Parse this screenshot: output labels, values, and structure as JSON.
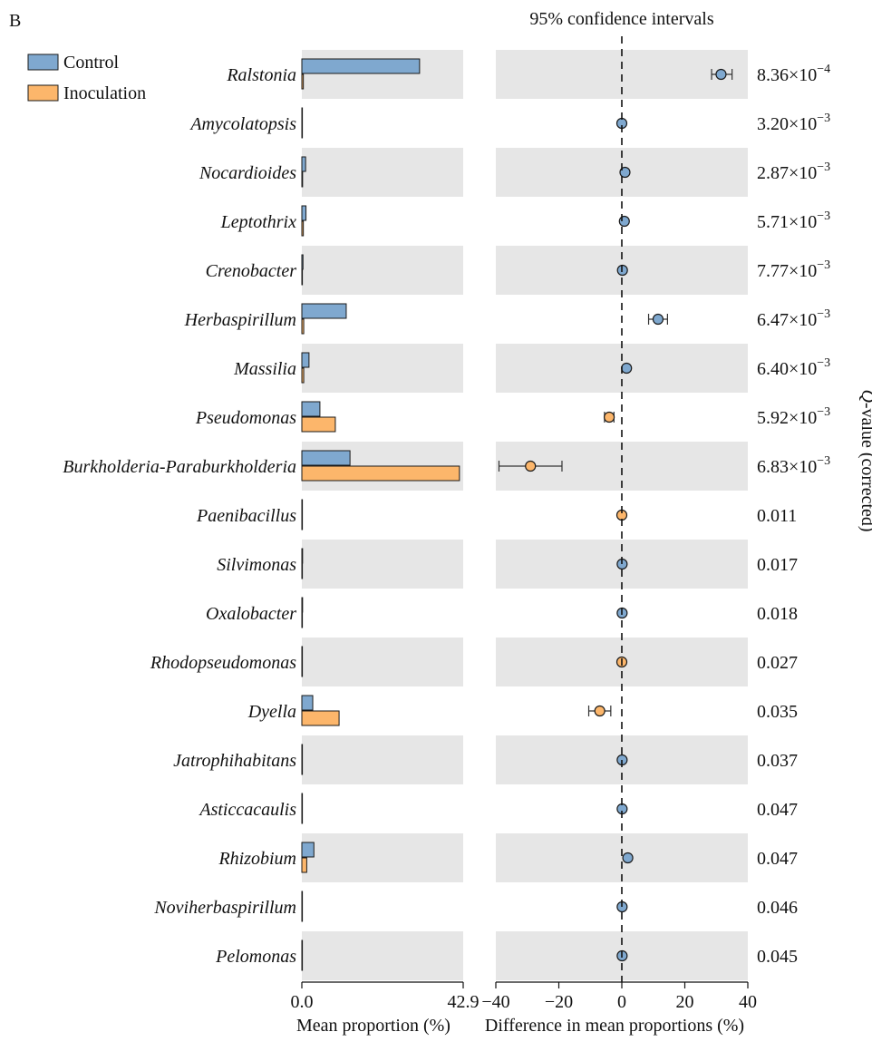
{
  "panel_label": "B",
  "chart_data": {
    "type": "bar",
    "legend": {
      "placement": "top-left",
      "items": [
        {
          "name": "Control",
          "color": "#7fa8cf"
        },
        {
          "name": "Inoculation",
          "color": "#fcb66b"
        }
      ]
    },
    "categories": [
      "Ralstonia",
      "Amycolatopsis",
      "Nocardioides",
      "Leptothrix",
      "Crenobacter",
      "Herbaspirillum",
      "Massilia",
      "Pseudomonas",
      "Burkholderia-Paraburkholderia",
      "Paenibacillus",
      "Silvimonas",
      "Oxalobacter",
      "Rhodopseudomonas",
      "Dyella",
      "Jatrophihabitans",
      "Asticcacaulis",
      "Rhizobium",
      "Noviherbaspirillum",
      "Pelomonas"
    ],
    "left_panel": {
      "xlabel": "Mean proportion (%)",
      "xlim": [
        0,
        42.9
      ],
      "xticks": [
        "0.0",
        "42.9"
      ],
      "series": [
        {
          "name": "Control",
          "values": [
            31.3,
            0.1,
            1.0,
            1.1,
            0.3,
            11.8,
            1.9,
            4.8,
            12.8,
            0.1,
            0.2,
            0.2,
            0.1,
            2.9,
            0.1,
            0.1,
            3.2,
            0.1,
            0.1
          ]
        },
        {
          "name": "Inoculation",
          "values": [
            0.4,
            0.05,
            0.2,
            0.4,
            0.1,
            0.5,
            0.5,
            8.9,
            41.9,
            0.05,
            0.05,
            0.05,
            0.05,
            9.9,
            0.05,
            0.05,
            1.3,
            0.05,
            0.05
          ]
        }
      ]
    },
    "right_panel": {
      "title": "95% confidence intervals",
      "xlabel": "Difference in mean proportions (%)",
      "xlim": [
        -40,
        40
      ],
      "xticks": [
        "−40",
        "−20",
        "0",
        "20",
        "40"
      ],
      "tick_values": [
        -40,
        -20,
        0,
        20,
        40
      ],
      "reference_line": 0,
      "points": [
        {
          "diff": 31.5,
          "low": 28.5,
          "high": 35.0,
          "group": "Control"
        },
        {
          "diff": 0.0,
          "low": null,
          "high": null,
          "group": "Control"
        },
        {
          "diff": 1.0,
          "low": null,
          "high": null,
          "group": "Control"
        },
        {
          "diff": 0.8,
          "low": null,
          "high": null,
          "group": "Control"
        },
        {
          "diff": 0.2,
          "low": null,
          "high": null,
          "group": "Control"
        },
        {
          "diff": 11.5,
          "low": 8.5,
          "high": 14.5,
          "group": "Control"
        },
        {
          "diff": 1.5,
          "low": null,
          "high": null,
          "group": "Control"
        },
        {
          "diff": -4.0,
          "low": -5.5,
          "high": -2.5,
          "group": "Inoculation"
        },
        {
          "diff": -29.0,
          "low": -39.0,
          "high": -19.0,
          "group": "Inoculation"
        },
        {
          "diff": 0.0,
          "low": null,
          "high": null,
          "group": "Inoculation"
        },
        {
          "diff": 0.1,
          "low": null,
          "high": null,
          "group": "Control"
        },
        {
          "diff": 0.1,
          "low": null,
          "high": null,
          "group": "Control"
        },
        {
          "diff": 0.0,
          "low": null,
          "high": null,
          "group": "Inoculation"
        },
        {
          "diff": -7.0,
          "low": -10.5,
          "high": -3.5,
          "group": "Inoculation"
        },
        {
          "diff": 0.1,
          "low": null,
          "high": null,
          "group": "Control"
        },
        {
          "diff": 0.1,
          "low": null,
          "high": null,
          "group": "Control"
        },
        {
          "diff": 1.9,
          "low": null,
          "high": null,
          "group": "Control"
        },
        {
          "diff": 0.1,
          "low": null,
          "high": null,
          "group": "Control"
        },
        {
          "diff": 0.1,
          "low": null,
          "high": null,
          "group": "Control"
        }
      ]
    },
    "q_values": [
      {
        "base": "8.36×10",
        "exp": "−4"
      },
      {
        "base": "3.20×10",
        "exp": "−3"
      },
      {
        "base": "2.87×10",
        "exp": "−3"
      },
      {
        "base": "5.71×10",
        "exp": "−3"
      },
      {
        "base": "7.77×10",
        "exp": "−3"
      },
      {
        "base": "6.47×10",
        "exp": "−3"
      },
      {
        "base": "6.40×10",
        "exp": "−3"
      },
      {
        "base": "5.92×10",
        "exp": "−3"
      },
      {
        "base": "6.83×10",
        "exp": "−3"
      },
      {
        "base": "0.011",
        "exp": ""
      },
      {
        "base": "0.017",
        "exp": ""
      },
      {
        "base": "0.018",
        "exp": ""
      },
      {
        "base": "0.027",
        "exp": ""
      },
      {
        "base": "0.035",
        "exp": ""
      },
      {
        "base": "0.037",
        "exp": ""
      },
      {
        "base": "0.047",
        "exp": ""
      },
      {
        "base": "0.047",
        "exp": ""
      },
      {
        "base": "0.046",
        "exp": ""
      },
      {
        "base": "0.045",
        "exp": ""
      }
    ],
    "q_axis_label": {
      "italic": "Q",
      "rest": "-value (corrected)"
    },
    "stripe_color": "#e6e6e6"
  }
}
